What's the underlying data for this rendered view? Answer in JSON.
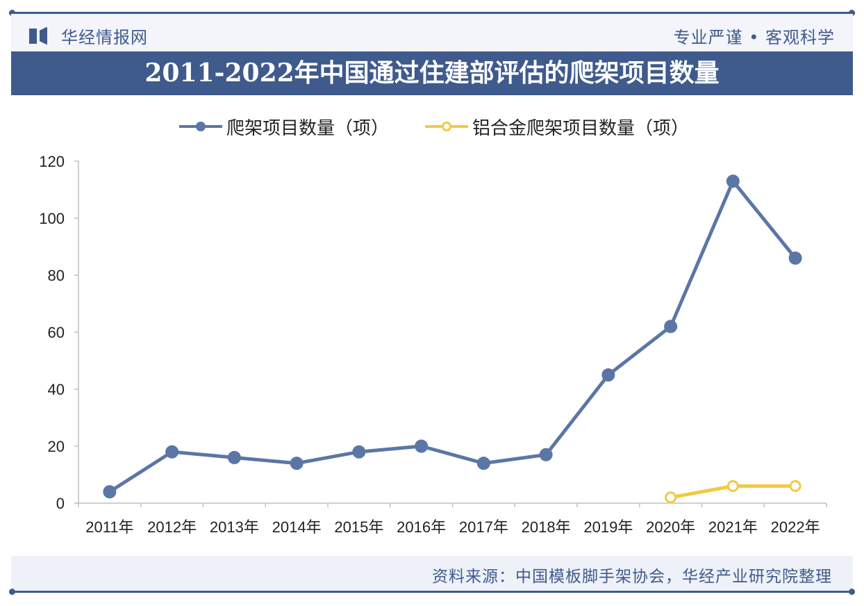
{
  "header": {
    "brand": "华经情报网",
    "slogan": "专业严谨 • 客观科学"
  },
  "title": "2011-2022年中国通过住建部评估的爬架项目数量",
  "source": "资料来源：中国模板脚手架协会，华经产业研究院整理",
  "colors": {
    "primary": "#3f5a8c",
    "series1": "#5b76a6",
    "series2": "#f5c842"
  },
  "chart_data": {
    "type": "line",
    "x": [
      "2011年",
      "2012年",
      "2013年",
      "2014年",
      "2015年",
      "2016年",
      "2017年",
      "2018年",
      "2019年",
      "2020年",
      "2021年",
      "2022年"
    ],
    "ylim": [
      0,
      120
    ],
    "yticks": [
      "0",
      "20",
      "40",
      "60",
      "80",
      "100",
      "120"
    ],
    "grid": false,
    "legend_position": "top",
    "series": [
      {
        "name": "爬架项目数量（项）",
        "values": [
          4,
          18,
          16,
          14,
          18,
          20,
          14,
          17,
          45,
          62,
          113,
          86
        ]
      },
      {
        "name": "铝合金爬架项目数量（项）",
        "values": [
          null,
          null,
          null,
          null,
          null,
          null,
          null,
          null,
          null,
          2,
          6,
          6
        ]
      }
    ]
  }
}
